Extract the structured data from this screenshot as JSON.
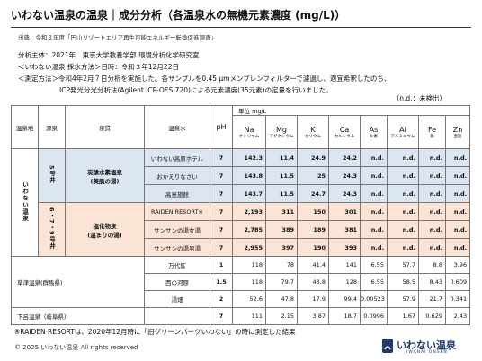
{
  "header": {
    "title": "いわない温泉の温泉｜成分分析（各温泉水の無機元素濃度 (mg/L)）",
    "source": "出典：令和３年度「円山リゾートエリア再生可能エネルギー転換促進調査」"
  },
  "intro": [
    "分析主体：2021年　東京大学教養学部 環境分析化学研究室",
    "＜いわない温泉 採水方法＞日時：令和３年12月22日",
    "＜測定方法＞令和4年2月７日分析を実施した。各サンプルを0.45 μmメンブレンフィルターで濾過し、適宜希釈したのち、",
    "ICP発光分光分析法(Agilent ICP-OES 720)による元素濃度(35元素)の定量を行いました。"
  ],
  "nd_note": "（n.d.：未検出）",
  "table": {
    "columns": {
      "spa": "温泉地",
      "source": "源泉",
      "quality": "泉質",
      "water": "温泉水",
      "ph": "pH"
    },
    "unit": "単位 mg/L",
    "elements": [
      {
        "symbol": "Na",
        "name": "ナトリウム"
      },
      {
        "symbol": "Mg",
        "name": "マグネシウム"
      },
      {
        "symbol": "K",
        "name": "カリウム"
      },
      {
        "symbol": "Ca",
        "name": "カルシウム"
      },
      {
        "symbol": "As",
        "name": "ヒ素"
      },
      {
        "symbol": "Al",
        "name": "アルミニウム"
      },
      {
        "symbol": "Fe",
        "name": "鉄"
      },
      {
        "symbol": "Zn",
        "name": "亜鉛"
      }
    ],
    "groups": [
      {
        "spa": "いわない温泉",
        "sources": [
          {
            "source": "5号井",
            "quality": [
              "炭酸水素塩泉",
              "(美肌の湯)"
            ],
            "color": "#dce6f2",
            "rows": [
              {
                "water": "いわない高原ホテル",
                "ph": "7",
                "values": [
                  "142.3",
                  "11.4",
                  "24.9",
                  "24.2",
                  "n.d.",
                  "n.d.",
                  "n.d.",
                  "n.d."
                ]
              },
              {
                "water": "おかえりなさい",
                "ph": "7",
                "values": [
                  "143.8",
                  "11.5",
                  "25",
                  "24.3",
                  "n.d.",
                  "n.d.",
                  "n.d.",
                  "n.d."
                ]
              },
              {
                "water": "高島旅館",
                "ph": "7",
                "values": [
                  "143.7",
                  "11.5",
                  "24.7",
                  "24.3",
                  "n.d.",
                  "n.d.",
                  "n.d.",
                  "n.d."
                ]
              }
            ]
          },
          {
            "source": "6・7・9号井",
            "quality": [
              "塩化物泉",
              "(温まりの湯)"
            ],
            "color": "#fbe3d6",
            "rows": [
              {
                "water": "RAIDEN RESORT※",
                "ph": "7",
                "values": [
                  "2,193",
                  "311",
                  "150",
                  "301",
                  "n.d.",
                  "n.d.",
                  "n.d.",
                  "n.d."
                ]
              },
              {
                "water": "サンサンの湯女湯",
                "ph": "7",
                "values": [
                  "2,785",
                  "389",
                  "189",
                  "381",
                  "n.d.",
                  "n.d.",
                  "n.d.",
                  "n.d."
                ]
              },
              {
                "water": "サンサンの湯男湯",
                "ph": "7",
                "values": [
                  "2,955",
                  "397",
                  "190",
                  "393",
                  "n.d.",
                  "n.d.",
                  "n.d.",
                  "n.d."
                ]
              }
            ]
          }
        ]
      },
      {
        "spa": "草津温泉(群馬県)",
        "rows": [
          {
            "water": "万代鉱",
            "ph": "1",
            "values": [
              "118",
              "78",
              "41.4",
              "141",
              "6.55",
              "57.7",
              "8.8",
              "3.96"
            ]
          },
          {
            "water": "西の河原",
            "ph": "1.5",
            "values": [
              "118",
              "79.7",
              "43.8",
              "128",
              "6.55",
              "58.5",
              "8.43",
              "0.609"
            ]
          },
          {
            "water": "湯畑",
            "ph": "2",
            "values": [
              "52.6",
              "47.8",
              "17.9",
              "99.4",
              "0.00523",
              "57.9",
              "21.7",
              "0.341"
            ]
          }
        ]
      },
      {
        "spa": "下呂温泉（岐阜県）",
        "rows": [
          {
            "ph": "7",
            "values": [
              "111",
              "2.15",
              "3.87",
              "18.7",
              "0.0996",
              "1.67",
              "0.629",
              "2.43"
            ]
          }
        ]
      }
    ]
  },
  "footnote": "※RAIDEN RESORTは、2020年12月時に「旧グリーンパークいわない」の時に測定した結果",
  "footer": {
    "copyright": "© 2025 いわない温泉 All rights reserved",
    "logo": "いわない温泉",
    "logo_sub": "IWANAI ONSEN"
  }
}
